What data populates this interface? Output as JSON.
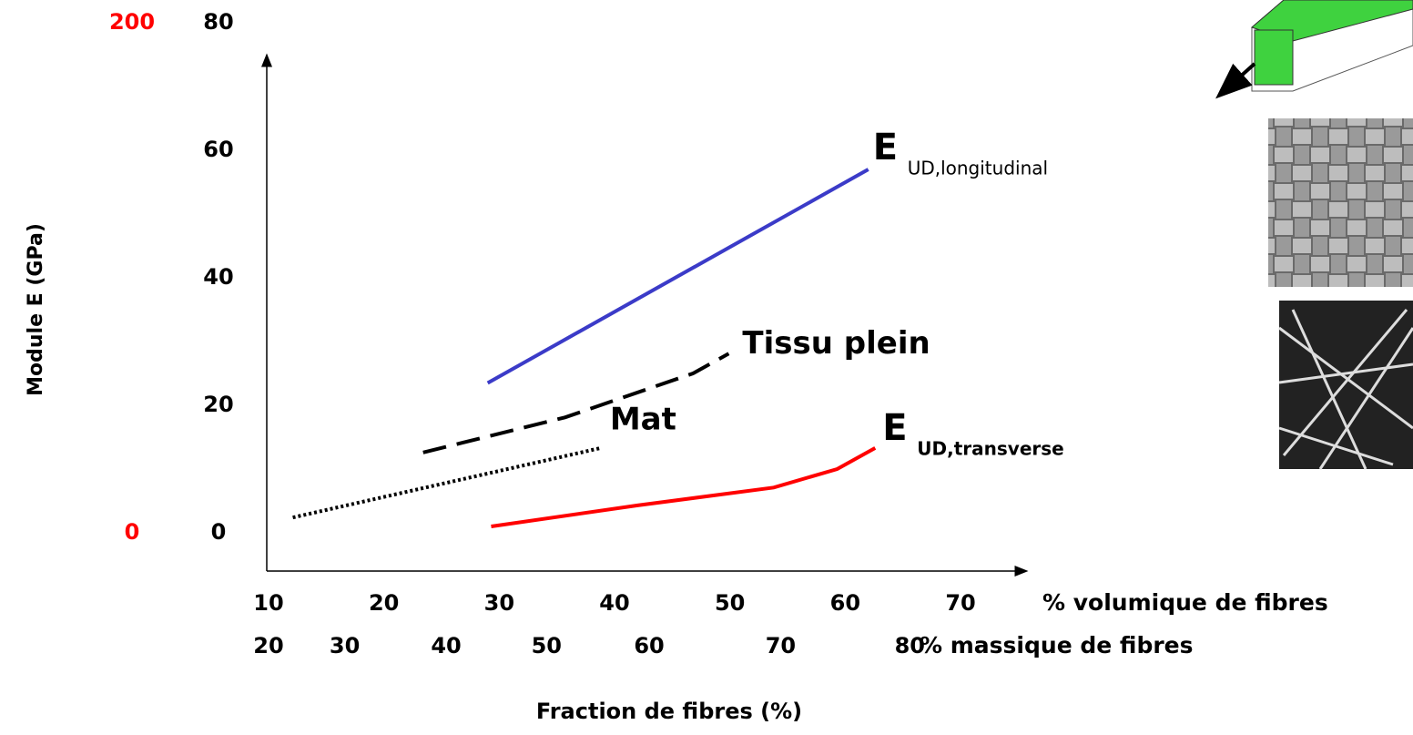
{
  "chart_data": {
    "type": "line",
    "y_label": "Module E  (GPa)",
    "x_label": "Fraction de fibres (%)",
    "x_axis_name": "% volumique de fibres",
    "x2_axis_name": "% massique de fibres",
    "xlim": [
      10,
      75.5
    ],
    "xticks": [
      10,
      20,
      30,
      40,
      50,
      60,
      70
    ],
    "x2ticks": [
      {
        "value": 10,
        "label": "20"
      },
      {
        "value": 16.6,
        "label": "30"
      },
      {
        "value": 25.4,
        "label": "40"
      },
      {
        "value": 34.1,
        "label": "50"
      },
      {
        "value": 43,
        "label": "60"
      },
      {
        "value": 54.4,
        "label": "70"
      },
      {
        "value": 65.6,
        "label": "80"
      }
    ],
    "ylim": [
      -6,
      80
    ],
    "yticks": [
      0,
      20,
      40,
      60,
      80
    ],
    "y2lim": [
      -15,
      200
    ],
    "y2ticks": [
      0,
      200
    ],
    "y2color": "#ff0000",
    "grid": false,
    "series": [
      {
        "name": "E",
        "subscript": "UD,longitudinal",
        "color": "#3b3bc8",
        "dash": "solid",
        "x": [
          29,
          62
        ],
        "values": [
          23.5,
          57
        ]
      },
      {
        "name": "Tissu plein",
        "color": "#000000",
        "dash": "dashed",
        "x": [
          23.4,
          35.7,
          46.8,
          49.9
        ],
        "values": [
          12.6,
          18.1,
          25,
          28.1
        ]
      },
      {
        "name": "Mat",
        "color": "#000000",
        "dash": "dotted",
        "x": [
          12.1,
          38.8
        ],
        "values": [
          2.4,
          13.3
        ]
      },
      {
        "name": "E",
        "subscript": "UD,transverse",
        "color": "#ff0000",
        "dash": "solid",
        "x": [
          29.3,
          42,
          53.8,
          59.3,
          62.6
        ],
        "values": [
          1,
          4.3,
          7.1,
          10,
          13.3
        ]
      }
    ]
  }
}
